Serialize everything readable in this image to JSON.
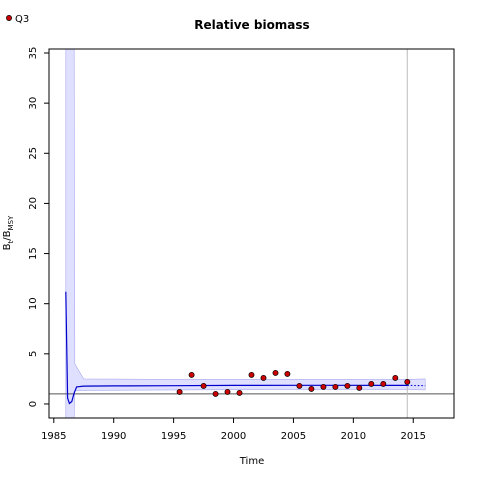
{
  "chart_data": {
    "type": "line",
    "title": "Relative biomass",
    "xlabel": "Time",
    "ylabel_main": "B",
    "ylabel_sub1": "t",
    "ylabel_slash": "/B",
    "ylabel_sub2": "MSY",
    "xlim": [
      1984.6,
      2018.4
    ],
    "ylim": [
      -1.4,
      35.4
    ],
    "xticks": [
      1985,
      1990,
      1995,
      2000,
      2005,
      2010,
      2015
    ],
    "yticks": [
      0,
      5,
      10,
      15,
      20,
      25,
      30,
      35
    ],
    "legend": {
      "position": "top-left",
      "label": "Q3"
    },
    "reference_line_y": 1,
    "vline_x": 2014.5,
    "colors": {
      "line": "#0000cc",
      "band": "#dcdcff",
      "point_fill": "#cc0000",
      "point_edge": "#000000",
      "reference": "#555555",
      "vline": "#bbbbbb"
    },
    "series": [
      {
        "kind": "estimate",
        "x": [
          1986.0,
          1986.15,
          1986.3,
          1986.5,
          1986.7,
          1986.9,
          1987.5,
          1990,
          1995,
          2000,
          2005,
          2010,
          2014.5
        ],
        "y": [
          11.2,
          0.6,
          0.05,
          0.25,
          1.1,
          1.7,
          1.78,
          1.8,
          1.82,
          1.85,
          1.86,
          1.86,
          1.85
        ]
      },
      {
        "kind": "forecast",
        "x": [
          2014.5,
          2015,
          2016
        ],
        "y": [
          1.85,
          1.84,
          1.83
        ]
      },
      {
        "kind": "uncertainty_band",
        "x": [
          1986.0,
          1986.7,
          1986.75,
          1987.5,
          1995,
          2005,
          2014.5,
          2016
        ],
        "lower": [
          -1.4,
          -1.4,
          1.3,
          1.35,
          1.4,
          1.45,
          1.45,
          1.4
        ],
        "upper": [
          35.4,
          35.4,
          4.0,
          2.5,
          2.45,
          2.45,
          2.45,
          2.5
        ]
      },
      {
        "kind": "observations",
        "name": "Q3",
        "x": [
          1995.5,
          1996.5,
          1997.5,
          1998.5,
          1999.5,
          2000.5,
          2001.5,
          2002.5,
          2003.5,
          2004.5,
          2005.5,
          2006.5,
          2007.5,
          2008.5,
          2009.5,
          2010.5,
          2011.5,
          2012.5,
          2013.5,
          2014.5
        ],
        "y": [
          1.2,
          2.9,
          1.8,
          1.0,
          1.2,
          1.1,
          2.9,
          2.6,
          3.1,
          3.0,
          1.8,
          1.5,
          1.7,
          1.7,
          1.8,
          1.6,
          2.0,
          2.0,
          2.6,
          2.2
        ]
      }
    ]
  }
}
